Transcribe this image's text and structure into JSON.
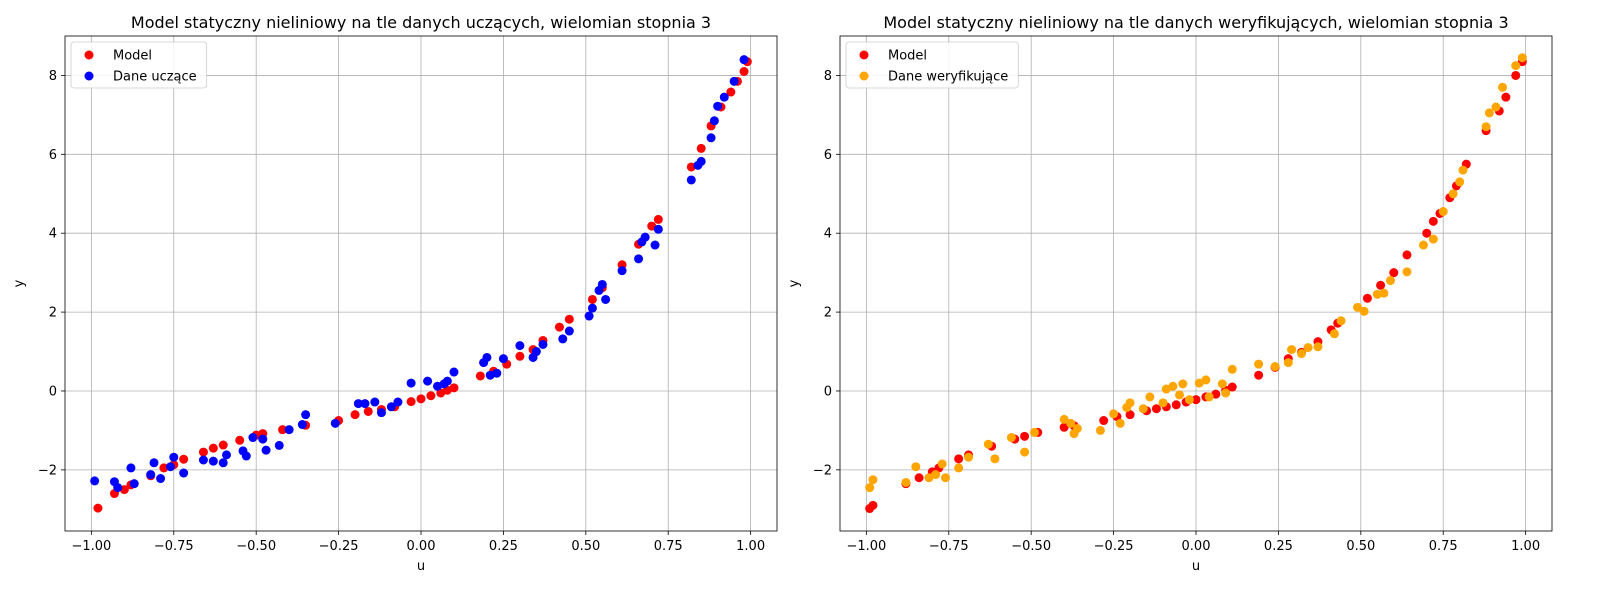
{
  "chart_data": [
    {
      "type": "scatter",
      "title": "Model statyczny nieliniowy na tle danych uczących, wielomian stopnia 3",
      "xlabel": "u",
      "ylabel": "y",
      "xlim": [
        -1.08,
        1.08
      ],
      "ylim": [
        -3.55,
        9.0
      ],
      "xticks": [
        -1.0,
        -0.75,
        -0.5,
        -0.25,
        0.0,
        0.25,
        0.5,
        0.75,
        1.0
      ],
      "xtick_labels": [
        "−1.00",
        "−0.75",
        "−0.50",
        "−0.25",
        "0.00",
        "0.25",
        "0.50",
        "0.75",
        "1.00"
      ],
      "yticks": [
        -2,
        0,
        2,
        4,
        6,
        8
      ],
      "ytick_labels": [
        "−2",
        "0",
        "2",
        "4",
        "6",
        "8"
      ],
      "grid": true,
      "legend_position": "top-left",
      "series": [
        {
          "name": "Model",
          "color": "#ff0000",
          "points": [
            [
              -0.98,
              -2.97
            ],
            [
              -0.93,
              -2.6
            ],
            [
              -0.9,
              -2.5
            ],
            [
              -0.88,
              -2.38
            ],
            [
              -0.82,
              -2.15
            ],
            [
              -0.78,
              -1.95
            ],
            [
              -0.75,
              -1.87
            ],
            [
              -0.72,
              -1.73
            ],
            [
              -0.66,
              -1.55
            ],
            [
              -0.63,
              -1.45
            ],
            [
              -0.6,
              -1.37
            ],
            [
              -0.55,
              -1.25
            ],
            [
              -0.5,
              -1.12
            ],
            [
              -0.48,
              -1.08
            ],
            [
              -0.42,
              -0.98
            ],
            [
              -0.35,
              -0.87
            ],
            [
              -0.25,
              -0.75
            ],
            [
              -0.2,
              -0.6
            ],
            [
              -0.16,
              -0.52
            ],
            [
              -0.12,
              -0.47
            ],
            [
              -0.08,
              -0.4
            ],
            [
              -0.03,
              -0.27
            ],
            [
              0.0,
              -0.2
            ],
            [
              0.03,
              -0.12
            ],
            [
              0.06,
              -0.05
            ],
            [
              0.08,
              0.02
            ],
            [
              0.1,
              0.08
            ],
            [
              0.18,
              0.38
            ],
            [
              0.22,
              0.5
            ],
            [
              0.26,
              0.68
            ],
            [
              0.3,
              0.88
            ],
            [
              0.34,
              1.05
            ],
            [
              0.37,
              1.28
            ],
            [
              0.42,
              1.62
            ],
            [
              0.45,
              1.82
            ],
            [
              0.52,
              2.32
            ],
            [
              0.55,
              2.62
            ],
            [
              0.61,
              3.2
            ],
            [
              0.66,
              3.72
            ],
            [
              0.7,
              4.18
            ],
            [
              0.72,
              4.35
            ],
            [
              0.82,
              5.68
            ],
            [
              0.85,
              6.15
            ],
            [
              0.88,
              6.72
            ],
            [
              0.91,
              7.2
            ],
            [
              0.94,
              7.58
            ],
            [
              0.96,
              7.85
            ],
            [
              0.98,
              8.1
            ],
            [
              0.99,
              8.35
            ]
          ]
        },
        {
          "name": "Dane uczące",
          "color": "#0000ff",
          "points": [
            [
              -0.99,
              -2.28
            ],
            [
              -0.93,
              -2.3
            ],
            [
              -0.92,
              -2.45
            ],
            [
              -0.88,
              -1.95
            ],
            [
              -0.87,
              -2.35
            ],
            [
              -0.82,
              -2.12
            ],
            [
              -0.81,
              -1.82
            ],
            [
              -0.79,
              -2.22
            ],
            [
              -0.76,
              -1.92
            ],
            [
              -0.75,
              -1.68
            ],
            [
              -0.72,
              -2.08
            ],
            [
              -0.66,
              -1.75
            ],
            [
              -0.63,
              -1.78
            ],
            [
              -0.6,
              -1.82
            ],
            [
              -0.59,
              -1.62
            ],
            [
              -0.54,
              -1.52
            ],
            [
              -0.53,
              -1.65
            ],
            [
              -0.51,
              -1.18
            ],
            [
              -0.48,
              -1.22
            ],
            [
              -0.47,
              -1.5
            ],
            [
              -0.43,
              -1.38
            ],
            [
              -0.4,
              -0.98
            ],
            [
              -0.36,
              -0.85
            ],
            [
              -0.35,
              -0.6
            ],
            [
              -0.26,
              -0.82
            ],
            [
              -0.19,
              -0.32
            ],
            [
              -0.17,
              -0.32
            ],
            [
              -0.14,
              -0.28
            ],
            [
              -0.12,
              -0.55
            ],
            [
              -0.09,
              -0.4
            ],
            [
              -0.07,
              -0.28
            ],
            [
              -0.03,
              0.2
            ],
            [
              0.02,
              0.25
            ],
            [
              0.05,
              0.12
            ],
            [
              0.07,
              0.18
            ],
            [
              0.08,
              0.25
            ],
            [
              0.1,
              0.48
            ],
            [
              0.19,
              0.72
            ],
            [
              0.2,
              0.85
            ],
            [
              0.21,
              0.4
            ],
            [
              0.23,
              0.45
            ],
            [
              0.25,
              0.82
            ],
            [
              0.3,
              1.15
            ],
            [
              0.34,
              0.85
            ],
            [
              0.35,
              1.0
            ],
            [
              0.37,
              1.18
            ],
            [
              0.43,
              1.32
            ],
            [
              0.45,
              1.52
            ],
            [
              0.51,
              1.9
            ],
            [
              0.52,
              2.1
            ],
            [
              0.54,
              2.55
            ],
            [
              0.55,
              2.7
            ],
            [
              0.56,
              2.32
            ],
            [
              0.61,
              3.05
            ],
            [
              0.66,
              3.35
            ],
            [
              0.67,
              3.78
            ],
            [
              0.68,
              3.9
            ],
            [
              0.71,
              3.7
            ],
            [
              0.72,
              4.1
            ],
            [
              0.82,
              5.35
            ],
            [
              0.84,
              5.72
            ],
            [
              0.85,
              5.82
            ],
            [
              0.88,
              6.42
            ],
            [
              0.89,
              6.85
            ],
            [
              0.9,
              7.22
            ],
            [
              0.92,
              7.45
            ],
            [
              0.95,
              7.85
            ],
            [
              0.98,
              8.4
            ]
          ]
        }
      ]
    },
    {
      "type": "scatter",
      "title": "Model statyczny nieliniowy na tle danych weryfikujących, wielomian stopnia 3",
      "xlabel": "u",
      "ylabel": "y",
      "xlim": [
        -1.08,
        1.08
      ],
      "ylim": [
        -3.55,
        9.0
      ],
      "xticks": [
        -1.0,
        -0.75,
        -0.5,
        -0.25,
        0.0,
        0.25,
        0.5,
        0.75,
        1.0
      ],
      "xtick_labels": [
        "−1.00",
        "−0.75",
        "−0.50",
        "−0.25",
        "0.00",
        "0.25",
        "0.50",
        "0.75",
        "1.00"
      ],
      "yticks": [
        -2,
        0,
        2,
        4,
        6,
        8
      ],
      "ytick_labels": [
        "−2",
        "0",
        "2",
        "4",
        "6",
        "8"
      ],
      "grid": true,
      "legend_position": "top-left",
      "series": [
        {
          "name": "Model",
          "color": "#ff0000",
          "points": [
            [
              -0.99,
              -2.98
            ],
            [
              -0.98,
              -2.9
            ],
            [
              -0.88,
              -2.35
            ],
            [
              -0.84,
              -2.2
            ],
            [
              -0.8,
              -2.05
            ],
            [
              -0.78,
              -1.95
            ],
            [
              -0.72,
              -1.72
            ],
            [
              -0.69,
              -1.62
            ],
            [
              -0.62,
              -1.4
            ],
            [
              -0.55,
              -1.22
            ],
            [
              -0.52,
              -1.15
            ],
            [
              -0.48,
              -1.05
            ],
            [
              -0.4,
              -0.92
            ],
            [
              -0.37,
              -0.88
            ],
            [
              -0.28,
              -0.75
            ],
            [
              -0.24,
              -0.65
            ],
            [
              -0.2,
              -0.6
            ],
            [
              -0.15,
              -0.5
            ],
            [
              -0.12,
              -0.45
            ],
            [
              -0.09,
              -0.4
            ],
            [
              -0.06,
              -0.35
            ],
            [
              -0.03,
              -0.28
            ],
            [
              0.0,
              -0.22
            ],
            [
              0.03,
              -0.15
            ],
            [
              0.06,
              -0.08
            ],
            [
              0.09,
              0.02
            ],
            [
              0.11,
              0.1
            ],
            [
              0.19,
              0.4
            ],
            [
              0.24,
              0.6
            ],
            [
              0.28,
              0.82
            ],
            [
              0.32,
              0.98
            ],
            [
              0.37,
              1.25
            ],
            [
              0.41,
              1.55
            ],
            [
              0.43,
              1.72
            ],
            [
              0.52,
              2.35
            ],
            [
              0.56,
              2.68
            ],
            [
              0.6,
              3.0
            ],
            [
              0.64,
              3.45
            ],
            [
              0.7,
              4.0
            ],
            [
              0.72,
              4.3
            ],
            [
              0.74,
              4.5
            ],
            [
              0.77,
              4.9
            ],
            [
              0.79,
              5.2
            ],
            [
              0.82,
              5.75
            ],
            [
              0.88,
              6.6
            ],
            [
              0.92,
              7.1
            ],
            [
              0.94,
              7.45
            ],
            [
              0.97,
              8.0
            ],
            [
              0.99,
              8.35
            ]
          ]
        },
        {
          "name": "Dane weryfikujące",
          "color": "#ffa500",
          "points": [
            [
              -0.99,
              -2.45
            ],
            [
              -0.98,
              -2.25
            ],
            [
              -0.88,
              -2.32
            ],
            [
              -0.85,
              -1.92
            ],
            [
              -0.81,
              -2.2
            ],
            [
              -0.79,
              -2.12
            ],
            [
              -0.77,
              -1.85
            ],
            [
              -0.76,
              -2.2
            ],
            [
              -0.72,
              -1.95
            ],
            [
              -0.69,
              -1.68
            ],
            [
              -0.63,
              -1.35
            ],
            [
              -0.61,
              -1.72
            ],
            [
              -0.56,
              -1.18
            ],
            [
              -0.52,
              -1.55
            ],
            [
              -0.49,
              -1.05
            ],
            [
              -0.4,
              -0.72
            ],
            [
              -0.38,
              -0.82
            ],
            [
              -0.37,
              -1.08
            ],
            [
              -0.36,
              -0.95
            ],
            [
              -0.29,
              -1.0
            ],
            [
              -0.25,
              -0.58
            ],
            [
              -0.23,
              -0.82
            ],
            [
              -0.21,
              -0.42
            ],
            [
              -0.2,
              -0.3
            ],
            [
              -0.16,
              -0.45
            ],
            [
              -0.14,
              -0.15
            ],
            [
              -0.1,
              -0.3
            ],
            [
              -0.09,
              0.05
            ],
            [
              -0.07,
              0.12
            ],
            [
              -0.05,
              -0.1
            ],
            [
              -0.04,
              0.18
            ],
            [
              -0.02,
              -0.22
            ],
            [
              0.01,
              0.2
            ],
            [
              0.03,
              0.28
            ],
            [
              0.04,
              -0.15
            ],
            [
              0.08,
              0.18
            ],
            [
              0.09,
              -0.05
            ],
            [
              0.11,
              0.55
            ],
            [
              0.19,
              0.68
            ],
            [
              0.24,
              0.62
            ],
            [
              0.28,
              0.72
            ],
            [
              0.29,
              1.05
            ],
            [
              0.32,
              0.95
            ],
            [
              0.34,
              1.1
            ],
            [
              0.37,
              1.12
            ],
            [
              0.42,
              1.45
            ],
            [
              0.44,
              1.78
            ],
            [
              0.49,
              2.12
            ],
            [
              0.51,
              2.02
            ],
            [
              0.55,
              2.45
            ],
            [
              0.57,
              2.48
            ],
            [
              0.59,
              2.8
            ],
            [
              0.64,
              3.02
            ],
            [
              0.69,
              3.7
            ],
            [
              0.72,
              3.85
            ],
            [
              0.75,
              4.55
            ],
            [
              0.78,
              5.0
            ],
            [
              0.8,
              5.3
            ],
            [
              0.81,
              5.6
            ],
            [
              0.88,
              6.7
            ],
            [
              0.89,
              7.05
            ],
            [
              0.91,
              7.2
            ],
            [
              0.93,
              7.7
            ],
            [
              0.97,
              8.25
            ],
            [
              0.99,
              8.45
            ]
          ]
        }
      ]
    }
  ]
}
